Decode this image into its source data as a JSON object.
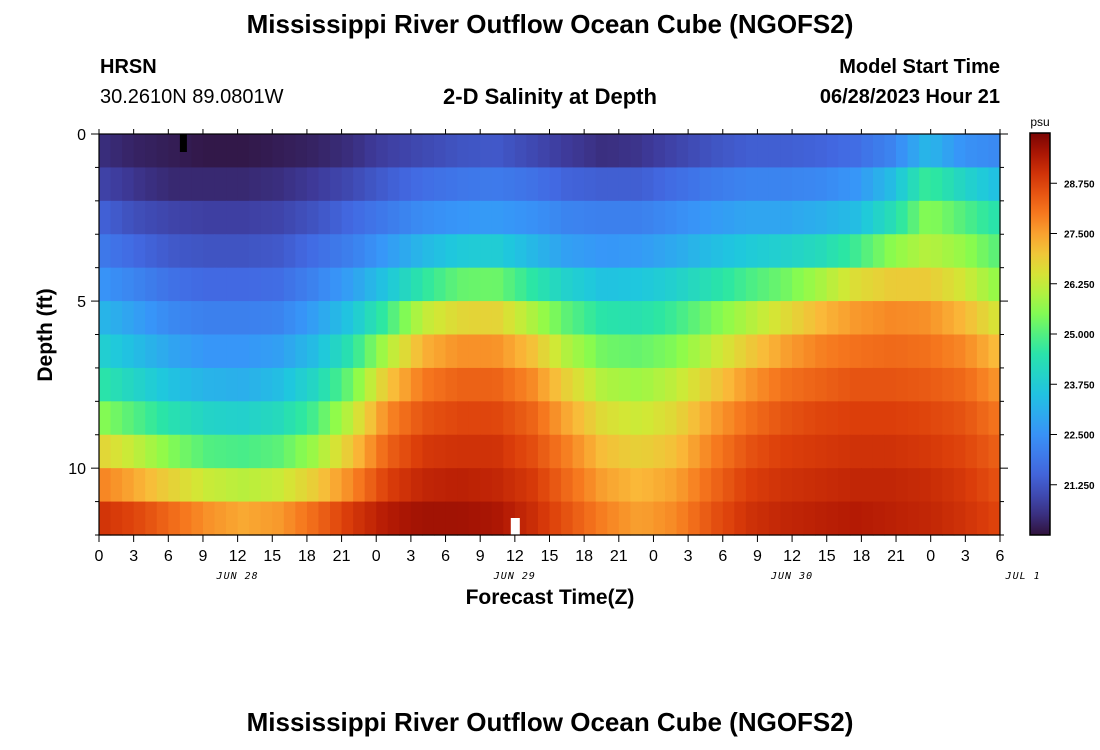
{
  "header": {
    "title": "Mississippi River Outflow Ocean Cube (NGOFS2)",
    "station_code": "HRSN",
    "station_coords": "30.2610N  89.0801W",
    "subtitle": "2-D Salinity at Depth",
    "start_label": "Model Start Time",
    "start_value": "06/28/2023 Hour 21"
  },
  "footer": {
    "title": "Mississippi River Outflow Ocean Cube (NGOFS2)"
  },
  "chart_data": {
    "type": "heatmap",
    "title": "2-D Salinity at Depth",
    "xlabel": "Forecast Time(Z)",
    "ylabel": "Depth (ft)",
    "x_hours_range": [
      0,
      78
    ],
    "x_tick_labels": [
      "0",
      "3",
      "6",
      "9",
      "12",
      "15",
      "18",
      "21",
      "0",
      "3",
      "6",
      "9",
      "12",
      "15",
      "18",
      "21",
      "0",
      "3",
      "6",
      "9",
      "12",
      "15",
      "18",
      "21",
      "0",
      "3",
      "6"
    ],
    "date_labels": [
      {
        "label": "JUN 28",
        "hour": 12
      },
      {
        "label": "JUN 29",
        "hour": 36
      },
      {
        "label": "JUN 30",
        "hour": 60
      },
      {
        "label": "JUL 1",
        "hour": 80
      }
    ],
    "ylim": [
      0,
      12
    ],
    "y_ticks": [
      0,
      5,
      10
    ],
    "depth_layers_ft": [
      0.5,
      1.5,
      2.5,
      3.5,
      4.5,
      5.5,
      6.5,
      7.5,
      8.5,
      9.5,
      10.5,
      11.5
    ],
    "colorbar": {
      "unit": "psu",
      "range": [
        20.0,
        30.0
      ],
      "tick_values": [
        21.25,
        22.5,
        23.75,
        25.0,
        26.25,
        27.5,
        28.75
      ],
      "tick_labels": [
        "21.250",
        "22.500",
        "23.750",
        "25.000",
        "26.250",
        "27.500",
        "28.750"
      ]
    },
    "salinity_psu": [
      [
        20.5,
        20.3,
        20.2,
        20.1,
        20.1,
        20.2,
        20.3,
        20.5,
        20.8,
        21.0,
        21.2,
        21.3,
        21.0,
        20.7,
        20.5,
        20.6,
        20.9,
        21.2,
        21.4,
        21.4,
        21.5,
        21.7,
        22.2,
        23.3,
        22.5,
        22.3
      ],
      [
        20.9,
        20.6,
        20.4,
        20.4,
        20.4,
        20.5,
        20.7,
        21.0,
        21.4,
        21.7,
        21.9,
        22.0,
        21.8,
        21.5,
        21.4,
        21.4,
        21.7,
        22.0,
        22.2,
        22.2,
        22.3,
        22.6,
        23.4,
        24.8,
        24.0,
        23.4
      ],
      [
        21.5,
        21.1,
        20.9,
        20.8,
        20.8,
        20.9,
        21.2,
        21.6,
        22.0,
        22.4,
        22.6,
        22.7,
        22.5,
        22.2,
        22.1,
        22.1,
        22.4,
        22.7,
        22.9,
        22.9,
        23.1,
        23.4,
        24.3,
        25.6,
        25.0,
        24.4
      ],
      [
        22.0,
        21.6,
        21.3,
        21.2,
        21.2,
        21.3,
        21.7,
        22.1,
        22.7,
        23.3,
        23.7,
        23.8,
        23.3,
        22.8,
        22.6,
        22.7,
        23.0,
        23.4,
        23.7,
        23.9,
        24.2,
        24.8,
        25.6,
        26.1,
        25.7,
        25.0
      ],
      [
        22.6,
        22.2,
        21.8,
        21.6,
        21.6,
        21.7,
        22.2,
        22.8,
        23.6,
        24.6,
        25.2,
        25.3,
        24.6,
        23.9,
        23.5,
        23.6,
        23.9,
        24.4,
        24.9,
        25.3,
        25.9,
        26.6,
        26.9,
        26.9,
        26.4,
        25.6
      ],
      [
        23.3,
        22.8,
        22.3,
        22.1,
        22.1,
        22.2,
        22.8,
        23.6,
        24.8,
        26.2,
        26.7,
        26.8,
        26.0,
        25.1,
        24.5,
        24.4,
        24.8,
        25.4,
        26.0,
        26.6,
        27.2,
        27.6,
        27.8,
        27.7,
        27.2,
        26.4
      ],
      [
        23.9,
        23.4,
        22.9,
        22.6,
        22.6,
        22.8,
        23.4,
        24.5,
        26.0,
        27.3,
        27.7,
        27.7,
        27.1,
        26.0,
        25.3,
        25.2,
        25.5,
        26.2,
        26.9,
        27.5,
        27.9,
        28.1,
        28.2,
        28.1,
        27.8,
        27.1
      ],
      [
        24.6,
        24.0,
        23.5,
        23.2,
        23.1,
        23.4,
        24.1,
        25.3,
        27.0,
        28.0,
        28.3,
        28.3,
        27.8,
        26.8,
        26.0,
        25.8,
        26.2,
        26.9,
        27.6,
        28.1,
        28.3,
        28.5,
        28.5,
        28.4,
        28.2,
        27.6
      ],
      [
        25.6,
        25.0,
        24.4,
        24.0,
        23.9,
        24.2,
        24.9,
        26.2,
        27.8,
        28.5,
        28.7,
        28.7,
        28.3,
        27.4,
        26.6,
        26.3,
        26.7,
        27.5,
        28.1,
        28.5,
        28.7,
        28.8,
        28.8,
        28.7,
        28.5,
        28.0
      ],
      [
        26.8,
        26.2,
        25.5,
        25.0,
        24.9,
        25.1,
        25.8,
        27.0,
        28.3,
        28.9,
        29.0,
        29.0,
        28.6,
        27.9,
        27.1,
        26.8,
        27.1,
        27.9,
        28.5,
        28.8,
        28.9,
        29.0,
        29.0,
        28.9,
        28.7,
        28.3
      ],
      [
        27.9,
        27.4,
        26.8,
        26.3,
        26.1,
        26.3,
        26.9,
        27.8,
        28.8,
        29.2,
        29.3,
        29.2,
        28.9,
        28.2,
        27.5,
        27.2,
        27.5,
        28.2,
        28.8,
        29.0,
        29.1,
        29.2,
        29.2,
        29.1,
        28.9,
        28.5
      ],
      [
        29.0,
        28.7,
        28.2,
        27.7,
        27.4,
        27.6,
        28.2,
        28.9,
        29.4,
        29.6,
        29.6,
        29.5,
        29.1,
        28.5,
        27.9,
        27.5,
        27.8,
        28.5,
        29.0,
        29.2,
        29.3,
        29.4,
        29.3,
        29.2,
        29.0,
        28.7
      ]
    ],
    "marker_hours": [
      7,
      36
    ],
    "marker_depths_ft": [
      0.3,
      11.8
    ]
  }
}
